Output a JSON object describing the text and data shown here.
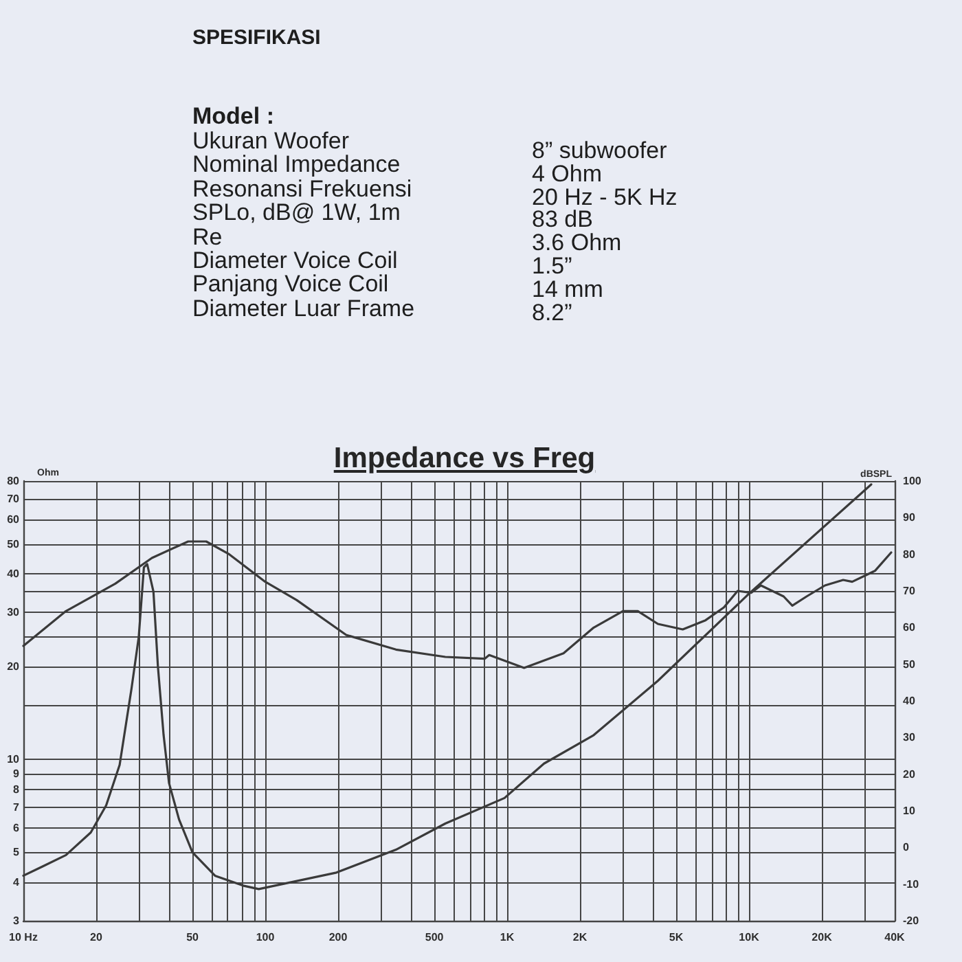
{
  "chart_data": {
    "type": "line",
    "title": "Impedance vs Freg",
    "ylabel": "Ohm",
    "y2label": "dBSPL",
    "annotations": [
      "SPESIFIKASI",
      "Model :",
      "Ukuran Woofer",
      "8” subwoofer",
      "Nominal Impedance",
      "4 Ohm",
      "Resonansi Frekuensi",
      "20 Hz - 5K Hz",
      "SPLo, dB@ 1W, 1m",
      "83 dB",
      "Re",
      "3.6 Ohm",
      "Diameter Voice Coil",
      "1.5”",
      "Panjang Voice Coil",
      "14 mm",
      "Diameter Luar Frame",
      "8.2”"
    ],
    "log": "xy",
    "xlim": [
      10,
      40000
    ],
    "xticks": [
      {
        "value": 10,
        "label": "10 Hz"
      },
      20,
      {
        "value": 30,
        "label": null
      },
      {
        "value": 40,
        "label": null
      },
      50,
      {
        "value": 60,
        "label": null
      },
      {
        "value": 70,
        "label": null
      },
      {
        "value": 80,
        "label": null
      },
      {
        "value": 90,
        "label": null
      },
      100,
      200,
      {
        "value": 300,
        "label": null
      },
      {
        "value": 400,
        "label": null
      },
      500,
      {
        "value": 600,
        "label": null
      },
      {
        "value": 700,
        "label": null
      },
      {
        "value": 800,
        "label": null
      },
      {
        "value": 900,
        "label": null
      },
      {
        "value": 1000,
        "label": "1K"
      },
      {
        "value": 2000,
        "label": "2K"
      },
      {
        "value": 3000,
        "label": null
      },
      {
        "value": 4000,
        "label": null
      },
      {
        "value": 5000,
        "label": "5K"
      },
      {
        "value": 6000,
        "label": null
      },
      {
        "value": 7000,
        "label": null
      },
      {
        "value": 8000,
        "label": null
      },
      {
        "value": 9000,
        "label": null
      },
      {
        "value": 10000,
        "label": "10K"
      },
      {
        "value": 20000,
        "label": "20K"
      },
      {
        "value": 30000,
        "label": null
      },
      {
        "value": 40000,
        "label": "40K"
      }
    ],
    "ylim": [
      3,
      80
    ],
    "yticks": [
      3,
      4,
      5,
      6,
      7,
      8,
      9,
      10,
      {
        "value": 15,
        "label": null
      },
      20,
      {
        "value": 25,
        "label": null
      },
      30,
      {
        "value": 35,
        "label": null
      },
      40,
      50,
      60,
      70,
      80
    ],
    "y2lim": [
      -20,
      100
    ],
    "y2ticks": [
      -20,
      -10,
      0,
      10,
      20,
      30,
      40,
      50,
      60,
      70,
      80,
      90,
      100
    ],
    "grid": true,
    "series": [
      {
        "color": "#3a3a3a",
        "x": [
          10,
          12,
          15,
          19,
          22,
          25,
          28,
          30,
          31.5,
          32.5,
          34.5,
          36,
          38,
          40,
          44,
          50,
          62,
          81,
          94,
          197,
          347,
          555,
          975,
          1420,
          2280,
          4200,
          9800,
          32000
        ],
        "values": [
          4.2,
          4.5,
          4.9,
          5.8,
          7.1,
          9.6,
          17,
          25,
          42,
          43,
          35,
          20,
          12,
          8.4,
          6.4,
          5.0,
          4.2,
          3.9,
          3.8,
          4.3,
          5.1,
          6.2,
          7.5,
          9.7,
          12,
          18,
          34,
          78
        ]
      },
      {
        "color": "#3a3a3a",
        "axis": "y2",
        "x": [
          10,
          15,
          24,
          34,
          48,
          57,
          71,
          100,
          135,
          216,
          347,
          555,
          807,
          843,
          1020,
          1175,
          1420,
          1710,
          2280,
          3010,
          3470,
          4200,
          5320,
          6610,
          7870,
          8970,
          10200,
          11200,
          13900,
          15100,
          17300,
          20600,
          24500,
          26700,
          33200,
          38700
        ],
        "values": [
          55,
          64.5,
          72,
          79,
          83.5,
          83.5,
          80,
          72.5,
          67.5,
          58,
          54,
          52,
          51.5,
          52.5,
          50.5,
          49,
          51,
          53,
          60,
          64.5,
          64.5,
          61,
          59.5,
          62,
          65.5,
          70,
          69.5,
          71.5,
          68.5,
          66,
          68.5,
          71.5,
          73,
          72.5,
          75.5,
          80.5
        ]
      }
    ]
  }
}
